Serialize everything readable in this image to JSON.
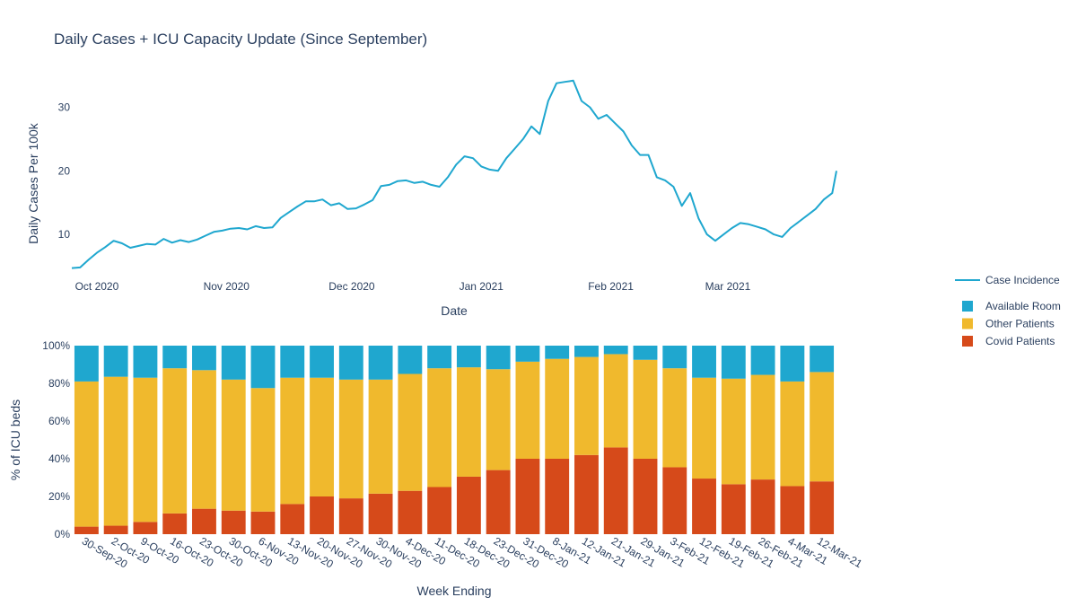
{
  "title": "Daily Cases + ICU Capacity Update (Since September)",
  "chart_data": [
    {
      "type": "line",
      "xlabel": "Date",
      "ylabel": "Daily Cases Per 100k",
      "x_range": [
        "2020-09-25",
        "2021-03-27"
      ],
      "ylim": [
        3.8,
        37
      ],
      "yticks": [
        10,
        20,
        30
      ],
      "xticks": [
        {
          "date": "2020-10-01",
          "label": "Oct 2020"
        },
        {
          "date": "2020-11-01",
          "label": "Nov 2020"
        },
        {
          "date": "2020-12-01",
          "label": "Dec 2020"
        },
        {
          "date": "2021-01-01",
          "label": "Jan 2021"
        },
        {
          "date": "2021-02-01",
          "label": "Feb 2021"
        },
        {
          "date": "2021-03-01",
          "label": "Mar 2021"
        }
      ],
      "grid": false,
      "series": [
        {
          "name": "Case Incidence",
          "color": "#1fa7cf",
          "points": [
            [
              "2020-09-25",
              4.7
            ],
            [
              "2020-09-27",
              4.8
            ],
            [
              "2020-09-29",
              6.0
            ],
            [
              "2020-10-01",
              7.1
            ],
            [
              "2020-10-03",
              8.0
            ],
            [
              "2020-10-05",
              9.0
            ],
            [
              "2020-10-07",
              8.6
            ],
            [
              "2020-10-09",
              7.9
            ],
            [
              "2020-10-11",
              8.2
            ],
            [
              "2020-10-13",
              8.5
            ],
            [
              "2020-10-15",
              8.4
            ],
            [
              "2020-10-17",
              9.3
            ],
            [
              "2020-10-19",
              8.7
            ],
            [
              "2020-10-21",
              9.1
            ],
            [
              "2020-10-23",
              8.8
            ],
            [
              "2020-10-25",
              9.2
            ],
            [
              "2020-10-27",
              9.8
            ],
            [
              "2020-10-29",
              10.4
            ],
            [
              "2020-10-31",
              10.6
            ],
            [
              "2020-11-02",
              10.9
            ],
            [
              "2020-11-04",
              11.0
            ],
            [
              "2020-11-06",
              10.8
            ],
            [
              "2020-11-08",
              11.3
            ],
            [
              "2020-11-10",
              11.0
            ],
            [
              "2020-11-12",
              11.1
            ],
            [
              "2020-11-14",
              12.6
            ],
            [
              "2020-11-16",
              13.5
            ],
            [
              "2020-11-18",
              14.4
            ],
            [
              "2020-11-20",
              15.2
            ],
            [
              "2020-11-22",
              15.2
            ],
            [
              "2020-11-24",
              15.5
            ],
            [
              "2020-11-26",
              14.6
            ],
            [
              "2020-11-28",
              14.9
            ],
            [
              "2020-11-30",
              14.0
            ],
            [
              "2020-12-02",
              14.1
            ],
            [
              "2020-12-04",
              14.7
            ],
            [
              "2020-12-06",
              15.4
            ],
            [
              "2020-12-08",
              17.6
            ],
            [
              "2020-12-10",
              17.8
            ],
            [
              "2020-12-12",
              18.4
            ],
            [
              "2020-12-14",
              18.5
            ],
            [
              "2020-12-16",
              18.1
            ],
            [
              "2020-12-18",
              18.3
            ],
            [
              "2020-12-20",
              17.8
            ],
            [
              "2020-12-22",
              17.5
            ],
            [
              "2020-12-24",
              19.0
            ],
            [
              "2020-12-26",
              21.0
            ],
            [
              "2020-12-28",
              22.3
            ],
            [
              "2020-12-30",
              22.0
            ],
            [
              "2021-01-01",
              20.7
            ],
            [
              "2021-01-03",
              20.2
            ],
            [
              "2021-01-05",
              20.0
            ],
            [
              "2021-01-07",
              22.0
            ],
            [
              "2021-01-09",
              23.5
            ],
            [
              "2021-01-11",
              25.0
            ],
            [
              "2021-01-13",
              27.0
            ],
            [
              "2021-01-15",
              25.8
            ],
            [
              "2021-01-17",
              31.0
            ],
            [
              "2021-01-19",
              33.8
            ],
            [
              "2021-01-21",
              34.0
            ],
            [
              "2021-01-23",
              34.2
            ],
            [
              "2021-01-25",
              31.0
            ],
            [
              "2021-01-27",
              30.0
            ],
            [
              "2021-01-29",
              28.2
            ],
            [
              "2021-01-31",
              28.8
            ],
            [
              "2021-02-02",
              27.5
            ],
            [
              "2021-02-04",
              26.2
            ],
            [
              "2021-02-06",
              24.0
            ],
            [
              "2021-02-08",
              22.5
            ],
            [
              "2021-02-10",
              22.5
            ],
            [
              "2021-02-12",
              19.0
            ],
            [
              "2021-02-14",
              18.5
            ],
            [
              "2021-02-16",
              17.5
            ],
            [
              "2021-02-18",
              14.5
            ],
            [
              "2021-02-20",
              16.5
            ],
            [
              "2021-02-22",
              12.5
            ],
            [
              "2021-02-24",
              10.0
            ],
            [
              "2021-02-26",
              9.0
            ],
            [
              "2021-02-28",
              10.0
            ],
            [
              "2021-03-02",
              11.0
            ],
            [
              "2021-03-04",
              11.8
            ],
            [
              "2021-03-06",
              11.6
            ],
            [
              "2021-03-08",
              11.2
            ],
            [
              "2021-03-10",
              10.8
            ],
            [
              "2021-03-12",
              10.0
            ],
            [
              "2021-03-14",
              9.6
            ],
            [
              "2021-03-16",
              11.0
            ],
            [
              "2021-03-18",
              12.0
            ],
            [
              "2021-03-20",
              13.0
            ],
            [
              "2021-03-22",
              14.0
            ],
            [
              "2021-03-24",
              15.5
            ],
            [
              "2021-03-26",
              16.5
            ],
            [
              "2021-03-27",
              20.0
            ]
          ]
        }
      ]
    },
    {
      "type": "bar",
      "stacked": true,
      "xlabel": "Week Ending",
      "ylabel": "% of ICU beds",
      "ylim": [
        0,
        100
      ],
      "yticks": [
        0,
        20,
        40,
        60,
        80,
        100
      ],
      "ytick_labels": [
        "0%",
        "20%",
        "40%",
        "60%",
        "80%",
        "100%"
      ],
      "grid": false,
      "categories": [
        "30-Sep-20",
        "2-Oct-20",
        "9-Oct-20",
        "16-Oct-20",
        "23-Oct-20",
        "30-Oct-20",
        "6-Nov-20",
        "13-Nov-20",
        "20-Nov-20",
        "27-Nov-20",
        "30-Nov-20",
        "4-Dec-20",
        "11-Dec-20",
        "18-Dec-20",
        "23-Dec-20",
        "31-Dec-20",
        "8-Jan-21",
        "12-Jan-21",
        "21-Jan-21",
        "29-Jan-21",
        "3-Feb-21",
        "12-Feb-21",
        "19-Feb-21",
        "26-Feb-21",
        "4-Mar-21",
        "12-Mar-21"
      ],
      "series": [
        {
          "name": "Covid Patients",
          "color": "#d64a1a",
          "values": [
            4,
            4.5,
            6.5,
            11,
            13.5,
            12.5,
            12,
            16,
            20,
            19,
            21.5,
            23,
            25,
            30.5,
            34,
            40,
            40,
            42,
            46,
            40,
            35.5,
            29.5,
            26.5,
            29,
            25.5,
            28
          ]
        },
        {
          "name": "Other Patients",
          "color": "#f0b92d",
          "values": [
            77,
            79,
            76.5,
            77,
            73.5,
            69.5,
            65.5,
            67,
            63,
            63,
            60.5,
            62,
            63,
            58,
            53.5,
            51.5,
            53,
            52,
            49.5,
            52.5,
            52.5,
            53.5,
            56,
            55.5,
            55.5,
            58
          ]
        },
        {
          "name": "Available Room",
          "color": "#1fa7cf",
          "values": [
            19,
            16.5,
            17,
            12,
            13,
            18,
            22.5,
            17,
            17,
            18,
            18,
            15,
            12,
            11.5,
            12.5,
            8.5,
            7,
            6,
            4.5,
            7.5,
            12,
            17,
            17.5,
            15.5,
            19,
            14
          ]
        }
      ]
    }
  ],
  "legend": {
    "placement": "right",
    "items": [
      {
        "label": "Case Incidence",
        "kind": "line",
        "color": "#1fa7cf"
      },
      {
        "label": "Available Room",
        "kind": "box",
        "color": "#1fa7cf"
      },
      {
        "label": "Other Patients",
        "kind": "box",
        "color": "#f0b92d"
      },
      {
        "label": "Covid Patients",
        "kind": "box",
        "color": "#d64a1a"
      }
    ]
  }
}
